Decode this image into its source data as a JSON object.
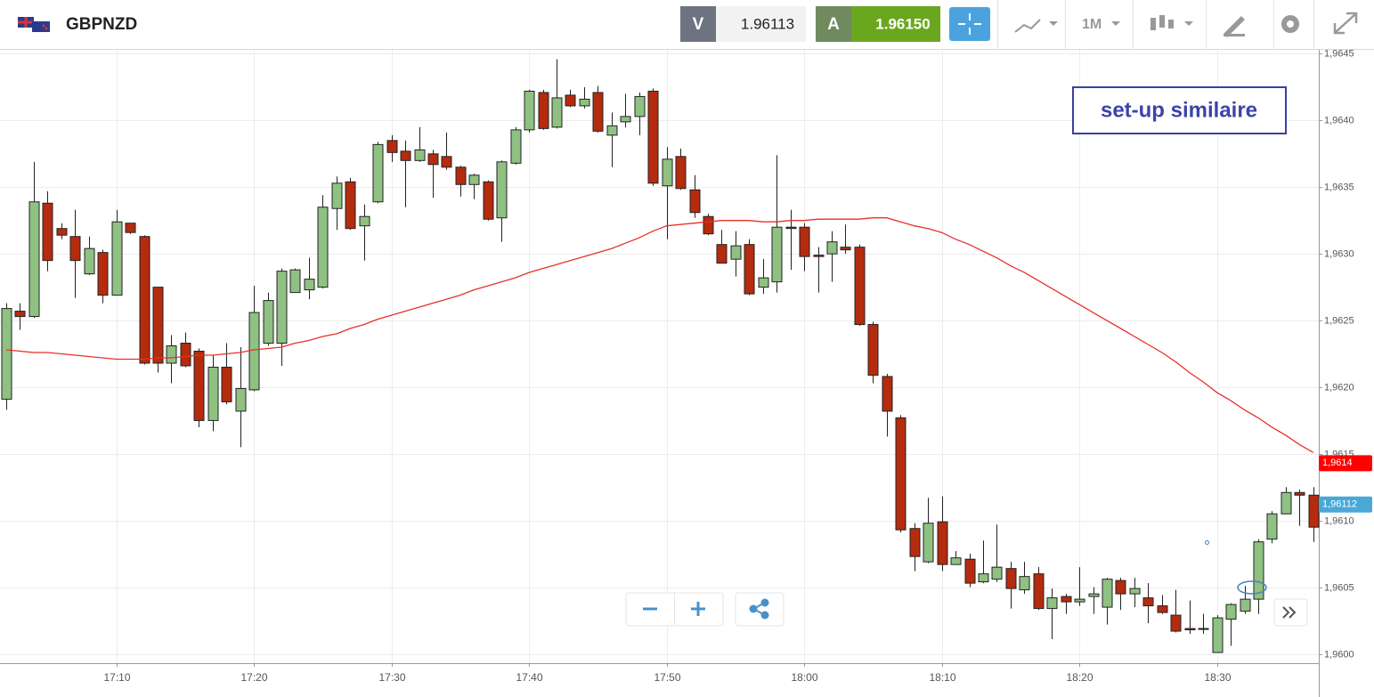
{
  "toolbar": {
    "symbol": "GBPNZD",
    "bid_label": "V",
    "bid": "1.96113",
    "ask_label": "A",
    "ask": "1.96150",
    "timeframe": "1M"
  },
  "chart_data": {
    "type": "candlestick",
    "annotation": "set-up similaire",
    "categories": [
      null,
      null,
      null,
      null,
      null,
      null,
      null,
      null,
      "17:10",
      null,
      null,
      null,
      null,
      null,
      null,
      null,
      null,
      null,
      "17:20",
      null,
      null,
      null,
      null,
      null,
      null,
      null,
      null,
      null,
      "17:30",
      null,
      null,
      null,
      null,
      null,
      null,
      null,
      null,
      null,
      "17:40",
      null,
      null,
      null,
      null,
      null,
      null,
      null,
      null,
      null,
      "17:50",
      null,
      null,
      null,
      null,
      null,
      null,
      null,
      null,
      null,
      "18:00",
      null,
      null,
      null,
      null,
      null,
      null,
      null,
      null,
      null,
      "18:10",
      null,
      null,
      null,
      null,
      null,
      null,
      null,
      null,
      null,
      "18:20",
      null,
      null,
      null,
      null,
      null,
      null,
      null,
      null,
      null,
      "18:30",
      null,
      null,
      null,
      null,
      null,
      null,
      null
    ],
    "open": [
      1.96191,
      1.96257,
      1.96253,
      1.96338,
      1.96319,
      1.96313,
      1.96285,
      1.96301,
      1.96269,
      1.96323,
      1.96313,
      1.96275,
      1.96218,
      1.96233,
      1.96227,
      1.96175,
      1.96215,
      1.96182,
      1.96198,
      1.96233,
      1.96233,
      1.96271,
      1.96273,
      1.96275,
      1.96334,
      1.96354,
      1.96321,
      1.96339,
      1.96385,
      1.96377,
      1.9637,
      1.96375,
      1.96373,
      1.96365,
      1.96352,
      1.96354,
      1.96327,
      1.96368,
      1.96393,
      1.96421,
      1.96395,
      1.96419,
      1.96411,
      1.96421,
      1.96389,
      1.96399,
      1.96403,
      1.96422,
      1.96351,
      1.96373,
      1.96348,
      1.96328,
      1.96307,
      1.96296,
      1.96307,
      1.96275,
      1.96279,
      1.9632,
      1.9632,
      1.96299,
      1.963,
      1.96305,
      1.96305,
      1.96247,
      1.96208,
      1.96177,
      1.96094,
      1.96069,
      1.96099,
      1.96067,
      1.96071,
      1.96054,
      1.96056,
      1.96064,
      1.96048,
      1.9606,
      1.96034,
      1.96043,
      1.96039,
      1.96043,
      1.96035,
      1.96055,
      1.96045,
      1.96042,
      1.96036,
      1.96029,
      1.96019,
      1.96019,
      1.96001,
      1.96026,
      1.96032,
      1.96041,
      1.96086,
      1.96105,
      1.96121,
      1.96119
    ],
    "high": [
      1.96263,
      1.96263,
      1.96369,
      1.96347,
      1.96323,
      1.96333,
      1.96313,
      1.96303,
      1.96333,
      1.96323,
      1.96314,
      1.96275,
      1.96239,
      1.96241,
      1.96229,
      1.96224,
      1.96233,
      1.9623,
      1.96276,
      1.96271,
      1.96289,
      1.96289,
      1.96297,
      1.96344,
      1.96358,
      1.96357,
      1.96337,
      1.96384,
      1.96389,
      1.96385,
      1.96395,
      1.96378,
      1.96391,
      1.96366,
      1.9636,
      1.96355,
      1.9637,
      1.96395,
      1.96423,
      1.96423,
      1.96446,
      1.96423,
      1.96425,
      1.96426,
      1.96406,
      1.9642,
      1.96421,
      1.96424,
      1.9638,
      1.96379,
      1.96359,
      1.9633,
      1.96318,
      1.96317,
      1.96311,
      1.96296,
      1.96374,
      1.96333,
      1.96323,
      1.96305,
      1.96317,
      1.96322,
      1.96307,
      1.96249,
      1.9621,
      1.96179,
      1.96098,
      1.96117,
      1.96118,
      1.96077,
      1.96075,
      1.96085,
      1.96097,
      1.96069,
      1.96069,
      1.96065,
      1.96049,
      1.96045,
      1.96065,
      1.9605,
      1.96057,
      1.96057,
      1.96057,
      1.96053,
      1.96044,
      1.96048,
      1.9604,
      1.9603,
      1.96029,
      1.96038,
      1.96051,
      1.96086,
      1.96107,
      1.96125,
      1.96123,
      1.96125
    ],
    "low": [
      1.96183,
      1.96243,
      1.96252,
      1.96287,
      1.96311,
      1.96267,
      1.96284,
      1.96263,
      1.96269,
      1.96315,
      1.96217,
      1.96211,
      1.96203,
      1.96215,
      1.9617,
      1.96167,
      1.96187,
      1.96155,
      1.96197,
      1.96231,
      1.96216,
      1.96271,
      1.96266,
      1.96274,
      1.96318,
      1.96318,
      1.96295,
      1.96338,
      1.96369,
      1.96335,
      1.96369,
      1.96342,
      1.96363,
      1.96343,
      1.96341,
      1.96325,
      1.96309,
      1.96367,
      1.96391,
      1.96393,
      1.96394,
      1.9641,
      1.96409,
      1.96391,
      1.96365,
      1.96395,
      1.96389,
      1.96351,
      1.96311,
      1.96348,
      1.96327,
      1.96314,
      1.96293,
      1.96283,
      1.96269,
      1.9627,
      1.96271,
      1.96288,
      1.96287,
      1.96271,
      1.96279,
      1.963,
      1.96246,
      1.96203,
      1.96163,
      1.96091,
      1.96062,
      1.96068,
      1.96062,
      1.96067,
      1.9605,
      1.96053,
      1.96054,
      1.96034,
      1.96045,
      1.96033,
      1.96011,
      1.9603,
      1.96036,
      1.9603,
      1.96022,
      1.96033,
      1.96035,
      1.96023,
      1.9603,
      1.96016,
      1.96015,
      1.96015,
      1.96001,
      1.96006,
      1.9603,
      1.9603,
      1.96083,
      1.96105,
      1.96096,
      1.96084
    ],
    "close": [
      1.96259,
      1.96253,
      1.96339,
      1.96295,
      1.96314,
      1.96295,
      1.96304,
      1.96269,
      1.96324,
      1.96316,
      1.96218,
      1.96218,
      1.96231,
      1.96216,
      1.96175,
      1.96215,
      1.96189,
      1.96199,
      1.96256,
      1.96265,
      1.96287,
      1.96288,
      1.96281,
      1.96335,
      1.96353,
      1.96319,
      1.96328,
      1.96382,
      1.96376,
      1.9637,
      1.96378,
      1.96367,
      1.96365,
      1.96352,
      1.96359,
      1.96326,
      1.96369,
      1.96393,
      1.96422,
      1.96394,
      1.96417,
      1.96411,
      1.96416,
      1.96392,
      1.96396,
      1.96403,
      1.96418,
      1.96353,
      1.96371,
      1.96349,
      1.96331,
      1.96315,
      1.96293,
      1.96306,
      1.9627,
      1.96282,
      1.9632,
      1.96319,
      1.96298,
      1.96298,
      1.96309,
      1.96303,
      1.96247,
      1.96209,
      1.96182,
      1.96093,
      1.96073,
      1.96098,
      1.96067,
      1.96072,
      1.96053,
      1.9606,
      1.96065,
      1.96049,
      1.96058,
      1.96034,
      1.96042,
      1.96039,
      1.96041,
      1.96045,
      1.96056,
      1.96045,
      1.96049,
      1.96036,
      1.96031,
      1.96017,
      1.96018,
      1.96019,
      1.96027,
      1.96037,
      1.96041,
      1.96084,
      1.96105,
      1.96121,
      1.96119,
      1.96095
    ],
    "up_color": "#8fc182",
    "down_color": "#b52b0e",
    "ma": {
      "color": "#e8302a",
      "values": [
        1.96228,
        1.96227,
        1.96226,
        1.96226,
        1.96225,
        1.96224,
        1.96223,
        1.96222,
        1.96221,
        1.96221,
        1.96221,
        1.96222,
        1.96222,
        1.96223,
        1.96224,
        1.96224,
        1.96225,
        1.96226,
        1.96228,
        1.96229,
        1.9623,
        1.96233,
        1.96235,
        1.96238,
        1.9624,
        1.96244,
        1.96247,
        1.96251,
        1.96254,
        1.96257,
        1.9626,
        1.96263,
        1.96266,
        1.96269,
        1.96273,
        1.96276,
        1.96279,
        1.96282,
        1.96286,
        1.96289,
        1.96292,
        1.96295,
        1.96298,
        1.96301,
        1.96304,
        1.96308,
        1.96312,
        1.96317,
        1.96321,
        1.96322,
        1.96323,
        1.96324,
        1.96325,
        1.96325,
        1.96325,
        1.96324,
        1.96324,
        1.96325,
        1.96325,
        1.96326,
        1.96326,
        1.96326,
        1.96326,
        1.96327,
        1.96327,
        1.96324,
        1.96321,
        1.96319,
        1.96316,
        1.96311,
        1.96307,
        1.96302,
        1.96297,
        1.96291,
        1.96286,
        1.9628,
        1.96274,
        1.96268,
        1.96262,
        1.96256,
        1.9625,
        1.96244,
        1.96238,
        1.96232,
        1.96226,
        1.96219,
        1.96211,
        1.96204,
        1.96196,
        1.9619,
        1.96183,
        1.96177,
        1.9617,
        1.96164,
        1.96157,
        1.96151
      ]
    },
    "price_tags": [
      {
        "value": 1.96143,
        "label": "1,9614",
        "color": "#ff0000"
      },
      {
        "value": 1.96112,
        "label": "1,96112",
        "color": "#4aa8d8"
      }
    ],
    "ylim": [
      1.95993,
      1.96453
    ],
    "yticks": [
      {
        "value": 1.96,
        "label": "1,9600"
      },
      {
        "value": 1.9605,
        "label": "1,9605"
      },
      {
        "value": 1.961,
        "label": "1,9610"
      },
      {
        "value": 1.9615,
        "label": "1,9615"
      },
      {
        "value": 1.962,
        "label": "1,9620"
      },
      {
        "value": 1.9625,
        "label": "1,9625"
      },
      {
        "value": 1.963,
        "label": "1,9630"
      },
      {
        "value": 1.9635,
        "label": "1,9635"
      },
      {
        "value": 1.964,
        "label": "1,9640"
      },
      {
        "value": 1.9645,
        "label": "1,9645"
      }
    ],
    "grid": true
  }
}
